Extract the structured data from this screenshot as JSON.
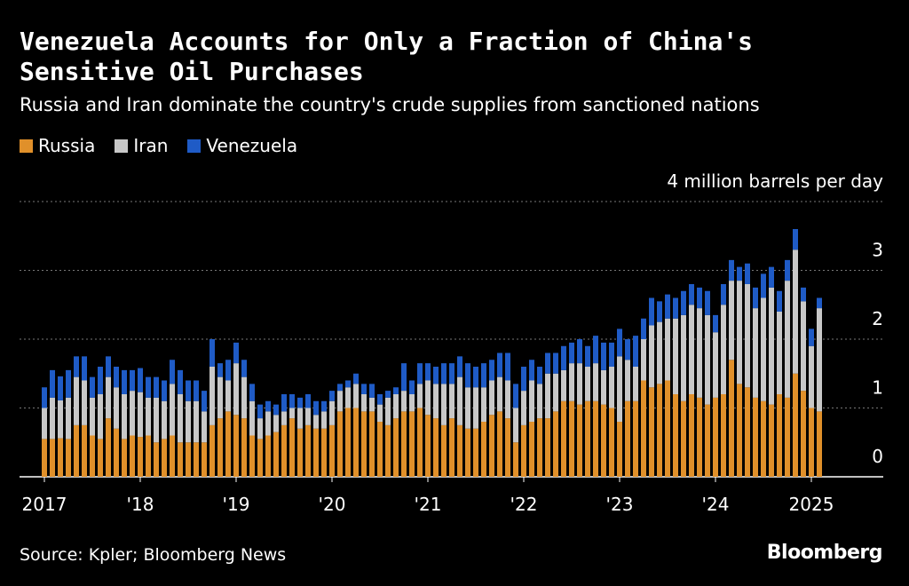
{
  "chart_data": {
    "type": "stacked_bar",
    "title": "Venezuela Accounts for Only a Fraction of China's Sensitive Oil Purchases",
    "subtitle": "Russia and Iran dominate the country's crude supplies from sanctioned nations",
    "source": "Source: Kpler; Bloomberg News",
    "brand": "Bloomberg",
    "categories": [
      "2017",
      null,
      null,
      null,
      null,
      null,
      null,
      null,
      null,
      null,
      null,
      null,
      "'18",
      null,
      null,
      null,
      null,
      null,
      null,
      null,
      null,
      null,
      null,
      null,
      "'19",
      null,
      null,
      null,
      null,
      null,
      null,
      null,
      null,
      null,
      null,
      null,
      "'20",
      null,
      null,
      null,
      null,
      null,
      null,
      null,
      null,
      null,
      null,
      null,
      "'21",
      null,
      null,
      null,
      null,
      null,
      null,
      null,
      null,
      null,
      null,
      null,
      "'22",
      null,
      null,
      null,
      null,
      null,
      null,
      null,
      null,
      null,
      null,
      null,
      "'23",
      null,
      null,
      null,
      null,
      null,
      null,
      null,
      null,
      null,
      null,
      null,
      "'24",
      null,
      null,
      null,
      null,
      null,
      null,
      null,
      null,
      null,
      null,
      null,
      "2025",
      null
    ],
    "series": [
      {
        "name": "Russia",
        "color": "#e0902a",
        "values": [
          0.55,
          0.55,
          0.56,
          0.55,
          0.75,
          0.75,
          0.6,
          0.55,
          0.85,
          0.7,
          0.55,
          0.6,
          0.58,
          0.6,
          0.5,
          0.55,
          0.6,
          0.5,
          0.5,
          0.5,
          0.5,
          0.75,
          0.85,
          0.95,
          0.9,
          0.85,
          0.6,
          0.55,
          0.6,
          0.65,
          0.75,
          0.85,
          0.7,
          0.75,
          0.7,
          0.7,
          0.75,
          0.95,
          1.0,
          1.0,
          0.95,
          0.95,
          0.8,
          0.75,
          0.85,
          0.95,
          0.95,
          1.0,
          0.9,
          0.85,
          0.75,
          0.85,
          0.75,
          0.7,
          0.7,
          0.8,
          0.9,
          0.95,
          0.85,
          0.5,
          0.75,
          0.8,
          0.85,
          0.85,
          0.95,
          1.1,
          1.1,
          1.05,
          1.1,
          1.1,
          1.05,
          1.0,
          0.8,
          1.1,
          1.1,
          1.4,
          1.3,
          1.35,
          1.4,
          1.2,
          1.1,
          1.2,
          1.15,
          1.05,
          1.15,
          1.2,
          1.7,
          1.35,
          1.3,
          1.15,
          1.1,
          1.05,
          1.2,
          1.15,
          1.5,
          1.25,
          1.0,
          0.95
        ]
      },
      {
        "name": "Iran",
        "color": "#c8c8c8",
        "values": [
          0.45,
          0.6,
          0.55,
          0.6,
          0.7,
          0.65,
          0.55,
          0.65,
          0.6,
          0.6,
          0.65,
          0.65,
          0.65,
          0.55,
          0.65,
          0.55,
          0.75,
          0.7,
          0.6,
          0.6,
          0.45,
          0.85,
          0.6,
          0.45,
          0.75,
          0.6,
          0.5,
          0.3,
          0.35,
          0.25,
          0.2,
          0.15,
          0.3,
          0.25,
          0.2,
          0.25,
          0.35,
          0.3,
          0.3,
          0.35,
          0.25,
          0.2,
          0.25,
          0.4,
          0.35,
          0.3,
          0.25,
          0.35,
          0.5,
          0.5,
          0.6,
          0.5,
          0.7,
          0.6,
          0.6,
          0.5,
          0.5,
          0.5,
          0.55,
          0.5,
          0.5,
          0.6,
          0.5,
          0.65,
          0.55,
          0.45,
          0.55,
          0.6,
          0.5,
          0.55,
          0.5,
          0.6,
          0.95,
          0.6,
          0.5,
          0.6,
          0.9,
          0.9,
          0.9,
          1.1,
          1.25,
          1.3,
          1.3,
          1.3,
          0.95,
          1.3,
          1.15,
          1.5,
          1.5,
          1.3,
          1.5,
          1.7,
          1.2,
          1.7,
          1.8,
          1.3,
          0.9,
          1.5
        ]
      },
      {
        "name": "Venezuela",
        "color": "#1f5bc6",
        "values": [
          0.3,
          0.4,
          0.35,
          0.4,
          0.3,
          0.35,
          0.3,
          0.4,
          0.3,
          0.3,
          0.35,
          0.3,
          0.35,
          0.3,
          0.3,
          0.3,
          0.35,
          0.35,
          0.3,
          0.3,
          0.3,
          0.4,
          0.2,
          0.3,
          0.3,
          0.25,
          0.25,
          0.2,
          0.15,
          0.15,
          0.25,
          0.2,
          0.15,
          0.2,
          0.2,
          0.15,
          0.15,
          0.1,
          0.1,
          0.15,
          0.15,
          0.2,
          0.15,
          0.1,
          0.1,
          0.4,
          0.2,
          0.3,
          0.25,
          0.25,
          0.3,
          0.3,
          0.3,
          0.35,
          0.3,
          0.35,
          0.3,
          0.35,
          0.4,
          0.35,
          0.35,
          0.3,
          0.25,
          0.3,
          0.3,
          0.35,
          0.3,
          0.35,
          0.3,
          0.4,
          0.4,
          0.35,
          0.4,
          0.3,
          0.45,
          0.3,
          0.4,
          0.3,
          0.35,
          0.3,
          0.35,
          0.3,
          0.3,
          0.35,
          0.25,
          0.3,
          0.3,
          0.2,
          0.3,
          0.3,
          0.35,
          0.3,
          0.3,
          0.3,
          0.3,
          0.2,
          0.25,
          0.15
        ]
      }
    ],
    "ylim": [
      0,
      4
    ],
    "yticks": [
      0,
      1,
      2,
      3,
      {
        "value": 4,
        "label": "4 million barrels per day"
      }
    ],
    "grid": true
  }
}
